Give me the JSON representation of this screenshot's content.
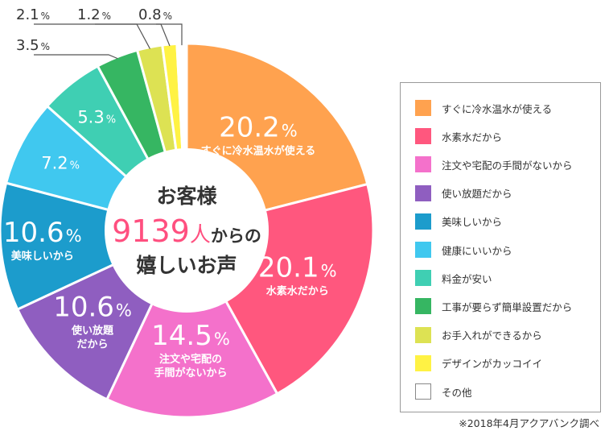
{
  "chart_data": {
    "type": "pie",
    "title": "",
    "center_text": {
      "line1": "お客様",
      "count": "9139",
      "count_unit": "人",
      "count_suffix": "からの",
      "line3": "嬉しいお声"
    },
    "slices": [
      {
        "value": 20.2,
        "value_label": "20.2",
        "label": "すぐに冷水温水が使える",
        "legend": "すぐに冷水温水が使える",
        "color": "#ffa24f"
      },
      {
        "value": 20.1,
        "value_label": "20.1",
        "label": "水素水だから",
        "legend": "水素水だから",
        "color": "#ff577e"
      },
      {
        "value": 14.5,
        "value_label": "14.5",
        "label": "注文や宅配の\n手間がないから",
        "legend": "注文や宅配の手間がないから",
        "color": "#f471cb"
      },
      {
        "value": 10.6,
        "value_label": "10.6",
        "label": "使い放題\nだから",
        "legend": "使い放題だから",
        "color": "#8f5ec0"
      },
      {
        "value": 10.6,
        "value_label": "10.6",
        "label": "美味しいから",
        "legend": "美味しいから",
        "color": "#1c9ccc"
      },
      {
        "value": 7.2,
        "value_label": "7.2",
        "label": "",
        "legend": "健康にいいから",
        "color": "#40c8ef"
      },
      {
        "value": 5.3,
        "value_label": "5.3",
        "label": "",
        "legend": "料金が安い",
        "color": "#3fcfb3"
      },
      {
        "value": 3.5,
        "value_label": "3.5",
        "label": "",
        "legend": "工事が要らず簡単設置だから",
        "color": "#36b662"
      },
      {
        "value": 2.1,
        "value_label": "2.1",
        "label": "",
        "legend": "お手入れができるから",
        "color": "#dde253"
      },
      {
        "value": 1.2,
        "value_label": "1.2",
        "label": "",
        "legend": "デザインがカッコイイ",
        "color": "#fff244"
      },
      {
        "value": 0.8,
        "value_label": "0.8",
        "label": "",
        "legend": "その他",
        "color": "#ffffff"
      }
    ],
    "percent_sign": "%",
    "legend_position": "right",
    "source_note": "※2018年4月アクアバンク調べ"
  },
  "colors": {
    "center_number": "#ff4f7f",
    "center_text": "#333333",
    "leader_line": "#555555",
    "outside_label": "#333333"
  }
}
